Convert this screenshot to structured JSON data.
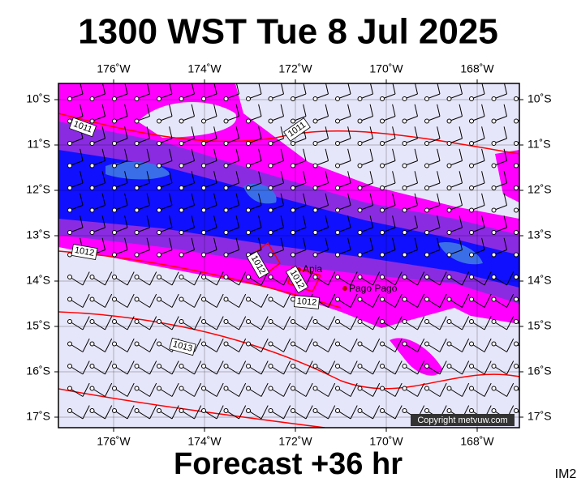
{
  "title": "1300 WST Tue 8 Jul 2025",
  "footer": "Forecast +36 hr",
  "product_code": "IM2",
  "copyright": "Copyright metvuw.com",
  "longitude_labels": [
    "176˚W",
    "174˚W",
    "172˚W",
    "170˚W",
    "168˚W"
  ],
  "latitude_labels": [
    "10˚S",
    "11˚S",
    "12˚S",
    "13˚S",
    "14˚S",
    "15˚S",
    "16˚S",
    "17˚S"
  ],
  "places": [
    "Apia",
    "Pago Pago"
  ],
  "isobar_labels": [
    "1011",
    "1011",
    "1012",
    "1012",
    "1012",
    "1012",
    "1013"
  ]
}
